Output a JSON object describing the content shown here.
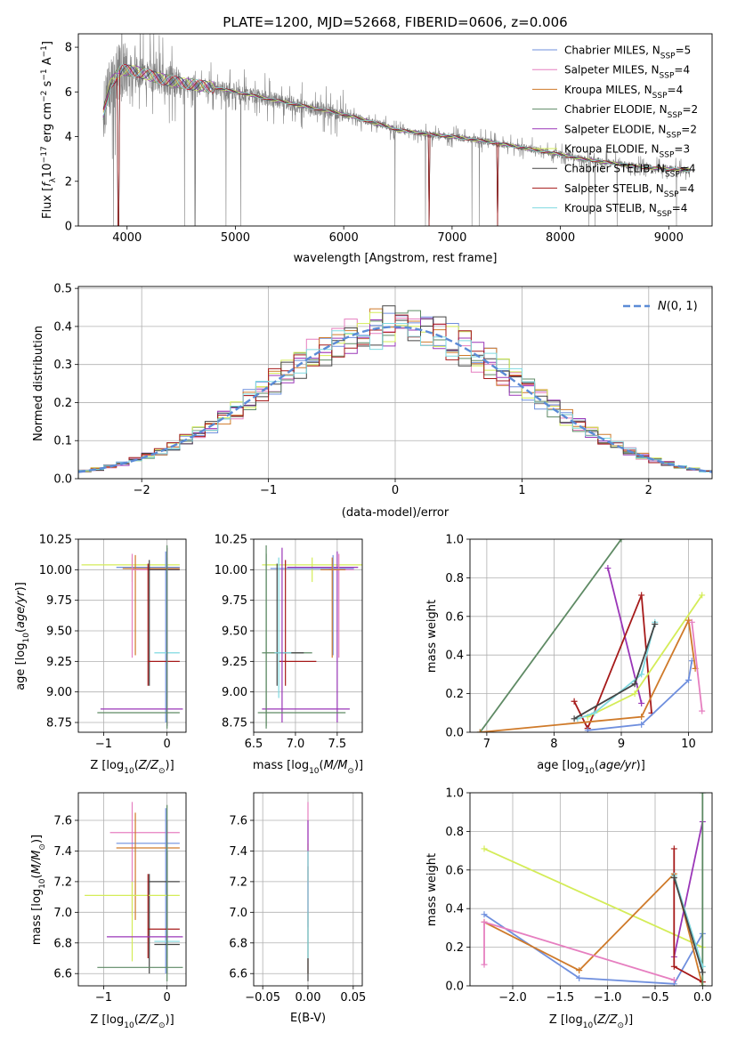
{
  "chart_data": [
    {
      "id": "spectrum",
      "type": "line",
      "title": "PLATE=1200, MJD=52668, FIBERID=0606, z=0.006",
      "xlabel": "wavelength [Angstrom, rest frame]",
      "ylabel": "Flux [f_λ10^-17 erg cm^-2 s^-1 A^-1]",
      "xlim": [
        3550,
        9400
      ],
      "ylim": [
        0,
        8.6
      ],
      "xticks": [
        4000,
        5000,
        6000,
        7000,
        8000,
        9000
      ],
      "yticks": [
        0,
        2,
        4,
        6,
        8
      ],
      "legend_position": "top-right",
      "legend": [
        {
          "name": "Chabrier MILES",
          "nssp": "N_SSP=5",
          "color": "#6f8fde"
        },
        {
          "name": "Salpeter MILES",
          "nssp": "N_SSP=4",
          "color": "#e67fc0"
        },
        {
          "name": "Kroupa MILES",
          "nssp": "N_SSP=4",
          "color": "#cf7a2a"
        },
        {
          "name": "Chabrier ELODIE",
          "nssp": "N_SSP=2",
          "color": "#5e8a64"
        },
        {
          "name": "Salpeter ELODIE",
          "nssp": "N_SSP=2",
          "color": "#9a36b8"
        },
        {
          "name": "Kroupa ELODIE",
          "nssp": "N_SSP=3",
          "color": "#d4ec58"
        },
        {
          "name": "Chabrier STELIB",
          "nssp": "N_SSP=4",
          "color": "#444444"
        },
        {
          "name": "Salpeter STELIB",
          "nssp": "N_SSP=4",
          "color": "#a61a1a"
        },
        {
          "name": "Kroupa STELIB",
          "nssp": "N_SSP=4",
          "color": "#7fd9e0"
        }
      ],
      "continuum": [
        [
          3780,
          5.0
        ],
        [
          3850,
          6.4
        ],
        [
          3950,
          7.0
        ],
        [
          4100,
          6.9
        ],
        [
          4300,
          6.6
        ],
        [
          4500,
          6.4
        ],
        [
          4800,
          6.2
        ],
        [
          5000,
          6.0
        ],
        [
          5200,
          5.8
        ],
        [
          5500,
          5.5
        ],
        [
          5800,
          5.2
        ],
        [
          6000,
          5.0
        ],
        [
          6300,
          4.6
        ],
        [
          6500,
          4.3
        ],
        [
          6800,
          4.1
        ],
        [
          7000,
          4.0
        ],
        [
          7300,
          3.8
        ],
        [
          7600,
          3.55
        ],
        [
          8000,
          3.2
        ],
        [
          8200,
          3.0
        ],
        [
          8500,
          2.8
        ],
        [
          8800,
          2.6
        ],
        [
          9000,
          2.55
        ],
        [
          9200,
          2.5
        ]
      ],
      "model_dips": [
        [
          3920,
          0
        ],
        [
          6790,
          0
        ],
        [
          7420,
          0
        ]
      ]
    },
    {
      "id": "residuals",
      "type": "histogram",
      "xlabel": "(data-model)/error",
      "ylabel": "Normed distribution",
      "xlim": [
        -2.5,
        2.5
      ],
      "ylim": [
        0,
        0.505
      ],
      "xticks": [
        -2,
        -1,
        0,
        1,
        2
      ],
      "yticks": [
        0.0,
        0.1,
        0.2,
        0.3,
        0.4,
        0.5
      ],
      "grid": true,
      "bin_width": 0.1,
      "legend_position": "top-right",
      "reference": {
        "label": "N(0,1)",
        "mu": 0,
        "sigma": 1,
        "color": "#5b8bd6"
      }
    },
    {
      "id": "age-vs-z",
      "type": "errorbar",
      "xlabel": "Z [log10(Z/Z_sun)]",
      "ylabel": "age [log10(age/yr)]",
      "xlim": [
        -1.4,
        0.3
      ],
      "ylim": [
        8.67,
        10.25
      ],
      "xticks": [
        -1,
        0
      ],
      "yticks": [
        8.75,
        9.0,
        9.25,
        9.5,
        9.75,
        10.0,
        10.25
      ],
      "grid": true
    },
    {
      "id": "age-vs-mass",
      "type": "errorbar",
      "xlabel": "mass [log10(M/M_sun)]",
      "ylabel": "",
      "xlim": [
        6.5,
        7.8
      ],
      "ylim": [
        8.67,
        10.25
      ],
      "xticks": [
        6.5,
        7.0,
        7.5
      ],
      "yticks": [
        8.75,
        9.0,
        9.25,
        9.5,
        9.75,
        10.0,
        10.25
      ],
      "grid": true
    },
    {
      "id": "weight-vs-age",
      "type": "line",
      "xlabel": "age [log10(age/yr)]",
      "ylabel": "mass weight",
      "xlim": [
        6.75,
        10.35
      ],
      "ylim": [
        0,
        1.0
      ],
      "xticks": [
        7,
        8,
        9,
        10
      ],
      "yticks": [
        0.0,
        0.2,
        0.4,
        0.6,
        0.8,
        1.0
      ],
      "grid": true,
      "series": [
        {
          "color": "#5e8a64",
          "x": [
            6.9,
            9.0
          ],
          "y": [
            0.0,
            1.0
          ]
        },
        {
          "color": "#9a36b8",
          "x": [
            8.8,
            9.3
          ],
          "y": [
            0.85,
            0.15
          ]
        },
        {
          "color": "#a61a1a",
          "x": [
            8.3,
            8.5,
            9.3,
            9.45
          ],
          "y": [
            0.16,
            0.02,
            0.71,
            0.1
          ]
        },
        {
          "color": "#d4ec58",
          "x": [
            8.5,
            9.2,
            10.2
          ],
          "y": [
            0.08,
            0.2,
            0.71
          ]
        },
        {
          "color": "#7fd9e0",
          "x": [
            8.35,
            8.6,
            9.3,
            9.5
          ],
          "y": [
            0.07,
            0.1,
            0.3,
            0.57
          ]
        },
        {
          "color": "#444444",
          "x": [
            8.3,
            9.2,
            9.5
          ],
          "y": [
            0.07,
            0.25,
            0.56
          ]
        },
        {
          "color": "#6f8fde",
          "x": [
            8.5,
            9.3,
            10.0,
            10.05
          ],
          "y": [
            0.01,
            0.04,
            0.27,
            0.37
          ]
        },
        {
          "color": "#cf7a2a",
          "x": [
            6.9,
            9.3,
            10.0,
            10.1
          ],
          "y": [
            0.0,
            0.08,
            0.58,
            0.33
          ]
        },
        {
          "color": "#e67fc0",
          "x": [
            10.05,
            10.2
          ],
          "y": [
            0.57,
            0.11
          ]
        }
      ]
    },
    {
      "id": "mass-vs-z",
      "type": "errorbar",
      "xlabel": "Z [log10(Z/Z_sun)]",
      "ylabel": "mass [log10(M/M_sun)]",
      "xlim": [
        -1.4,
        0.3
      ],
      "ylim": [
        6.52,
        7.78
      ],
      "xticks": [
        -1,
        0
      ],
      "yticks": [
        6.6,
        6.8,
        7.0,
        7.2,
        7.4,
        7.6
      ],
      "grid": true
    },
    {
      "id": "mass-vs-ebv",
      "type": "errorbar",
      "xlabel": "E(B-V)",
      "ylabel": "",
      "xlim": [
        -0.06,
        0.06
      ],
      "ylim": [
        6.52,
        7.78
      ],
      "xticks": [
        -0.05,
        0.0,
        0.05
      ],
      "yticks": [
        6.6,
        6.8,
        7.0,
        7.2,
        7.4,
        7.6
      ],
      "grid": true
    },
    {
      "id": "weight-vs-z",
      "type": "line",
      "xlabel": "Z [log10(Z/Z_sun)]",
      "ylabel": "mass weight",
      "xlim": [
        -2.45,
        0.1
      ],
      "ylim": [
        0,
        1.0
      ],
      "xticks": [
        -2.0,
        -1.5,
        -1.0,
        -0.5,
        0.0
      ],
      "yticks": [
        0.0,
        0.2,
        0.4,
        0.6,
        0.8,
        1.0
      ],
      "grid": true,
      "series": [
        {
          "color": "#d4ec58",
          "x": [
            -2.3,
            0.0
          ],
          "y": [
            0.71,
            0.2
          ]
        },
        {
          "color": "#6f8fde",
          "x": [
            -2.3,
            -1.3,
            -0.3,
            0.0
          ],
          "y": [
            0.37,
            0.04,
            0.01,
            0.27
          ]
        },
        {
          "color": "#cf7a2a",
          "x": [
            -2.3,
            -1.3,
            -0.3,
            0.0
          ],
          "y": [
            0.33,
            0.08,
            0.58,
            0.0
          ]
        },
        {
          "color": "#e67fc0",
          "x": [
            -2.3,
            -2.3,
            -0.3
          ],
          "y": [
            0.11,
            0.33,
            0.03
          ]
        },
        {
          "color": "#9a36b8",
          "x": [
            -0.3,
            0.0
          ],
          "y": [
            0.15,
            0.85
          ]
        },
        {
          "color": "#a61a1a",
          "x": [
            -0.3,
            -0.3,
            0.0
          ],
          "y": [
            0.71,
            0.1,
            0.02
          ]
        },
        {
          "color": "#5e8a64",
          "x": [
            0.0,
            0.0
          ],
          "y": [
            0.0,
            1.0
          ]
        },
        {
          "color": "#7fd9e0",
          "x": [
            -0.3,
            0.0
          ],
          "y": [
            0.57,
            0.1
          ]
        },
        {
          "color": "#444444",
          "x": [
            -0.3,
            0.0
          ],
          "y": [
            0.56,
            0.07
          ]
        }
      ]
    }
  ]
}
